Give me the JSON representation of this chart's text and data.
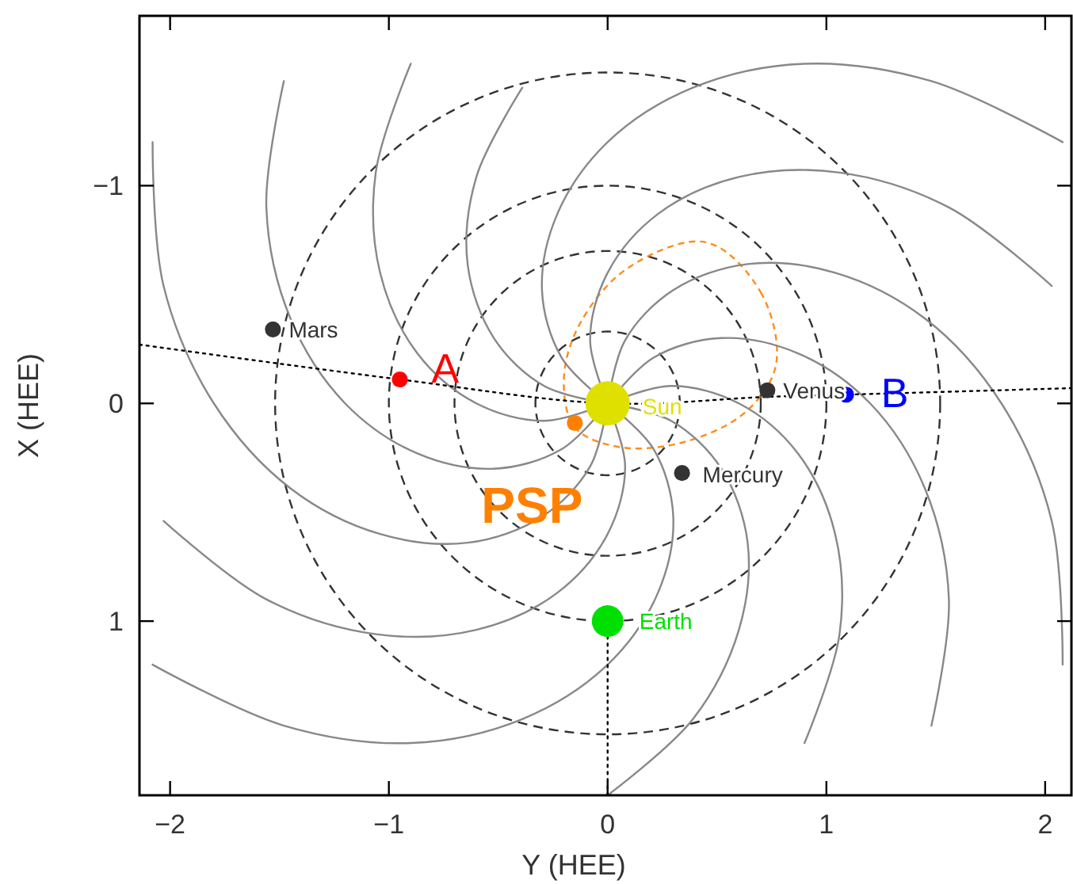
{
  "chart_data": {
    "type": "line",
    "xlabel": "Y (HEE)",
    "ylabel": "X (HEE)",
    "xlim": [
      -2.14,
      2.12
    ],
    "ylim": [
      1.8,
      -1.78
    ],
    "xticks": [
      -2,
      -1,
      0,
      1,
      2
    ],
    "yticks": [
      -1,
      0,
      1
    ],
    "grid": false,
    "series": [
      {
        "type": "line",
        "color": "#888888",
        "line_style": "solid",
        "x": [
          0,
          0.29,
          0.52,
          0.64,
          0.6,
          0.39,
          0
        ],
        "values": [
          0,
          0.08,
          0.3,
          0.64,
          1.04,
          1.45,
          1.8
        ]
      },
      {
        "type": "line",
        "color": "#888888",
        "line_style": "solid",
        "x": [
          0,
          0.21,
          0.3,
          0.23,
          0,
          -0.39,
          -0.9,
          -1.48,
          -2.08
        ],
        "values": [
          0,
          0.21,
          0.52,
          0.87,
          1.2,
          1.45,
          1.56,
          1.48,
          1.2
        ]
      },
      {
        "type": "line",
        "color": "#888888",
        "line_style": "solid",
        "x": [
          0,
          0.08,
          0,
          -0.23,
          -0.6,
          -1.06,
          -1.56,
          -2.03
        ],
        "values": [
          0,
          0.29,
          0.6,
          0.87,
          1.04,
          1.06,
          0.9,
          0.54
        ]
      },
      {
        "type": "line",
        "color": "#888888",
        "line_style": "solid",
        "x": [
          0,
          -0.08,
          -0.3,
          -0.64,
          -1.04,
          -1.45,
          -1.8,
          -2.03,
          -2.08
        ],
        "values": [
          0,
          0.29,
          0.52,
          0.64,
          0.6,
          0.39,
          0,
          -0.54,
          -1.2
        ]
      },
      {
        "type": "line",
        "color": "#888888",
        "line_style": "solid",
        "x": [
          0,
          -0.21,
          -0.52,
          -0.87,
          -1.2,
          -1.45,
          -1.56,
          -1.48
        ],
        "values": [
          0,
          0.21,
          0.3,
          0.23,
          0,
          -0.39,
          -0.9,
          -1.48
        ]
      },
      {
        "type": "line",
        "color": "#888888",
        "line_style": "solid",
        "x": [
          0,
          -0.29,
          -0.6,
          -0.87,
          -1.04,
          -1.06,
          -0.9
        ],
        "values": [
          0,
          0.08,
          0,
          -0.23,
          -0.6,
          -1.06,
          -1.56
        ]
      },
      {
        "type": "line",
        "color": "#888888",
        "line_style": "solid",
        "x": [
          0,
          -0.29,
          -0.52,
          -0.64,
          -0.6,
          -0.39
        ],
        "values": [
          0,
          -0.08,
          -0.3,
          -0.64,
          -1.04,
          -1.45
        ]
      },
      {
        "type": "line",
        "color": "#888888",
        "line_style": "solid",
        "x": [
          0,
          -0.21,
          -0.3,
          -0.23,
          0,
          0.39,
          0.9,
          1.48,
          2.08
        ],
        "values": [
          0,
          -0.21,
          -0.52,
          -0.87,
          -1.2,
          -1.45,
          -1.56,
          -1.48,
          -1.2
        ]
      },
      {
        "type": "line",
        "color": "#888888",
        "line_style": "solid",
        "x": [
          0,
          -0.08,
          0,
          0.23,
          0.6,
          1.06,
          1.56,
          2.03
        ],
        "values": [
          0,
          -0.29,
          -0.6,
          -0.87,
          -1.04,
          -1.06,
          -0.9,
          -0.54
        ]
      },
      {
        "type": "line",
        "color": "#888888",
        "line_style": "solid",
        "x": [
          0,
          0.08,
          0.3,
          0.64,
          1.04,
          1.45,
          1.8,
          2.03,
          2.08
        ],
        "values": [
          0,
          -0.29,
          -0.52,
          -0.64,
          -0.6,
          -0.39,
          0,
          0.54,
          1.2
        ]
      },
      {
        "type": "line",
        "color": "#888888",
        "line_style": "solid",
        "x": [
          0,
          0.21,
          0.52,
          0.87,
          1.2,
          1.45,
          1.56,
          1.48
        ],
        "values": [
          0,
          -0.21,
          -0.3,
          -0.23,
          0,
          0.39,
          0.9,
          1.48
        ]
      },
      {
        "type": "line",
        "color": "#888888",
        "line_style": "solid",
        "x": [
          0,
          0.29,
          0.6,
          0.87,
          1.04,
          1.06,
          0.9
        ],
        "values": [
          0,
          -0.08,
          0,
          0.23,
          0.6,
          1.06,
          1.56
        ]
      },
      {
        "type": "line",
        "color": "#000000",
        "line_style": "dotted",
        "x": [
          -2.14,
          -0.95,
          0,
          0.73,
          1.09,
          2.12
        ],
        "values": [
          -0.27,
          -0.11,
          0,
          -0.03,
          -0.04,
          -0.07
        ]
      },
      {
        "type": "line",
        "color": "#000000",
        "line_style": "dotted",
        "x": [
          0,
          0
        ],
        "values": [
          1.07,
          1.8
        ]
      },
      {
        "type": "bubble",
        "x": [
          -1.53,
          -0.95,
          0,
          -0.15,
          0.34,
          0.73,
          1.09,
          0
        ],
        "values": [
          -0.34,
          -0.11,
          0,
          0.09,
          0.32,
          -0.06,
          -0.04,
          1
        ],
        "sizes": [
          0.13,
          0.13,
          1,
          0.13,
          0.13,
          0.13,
          0.13,
          0.51
        ],
        "colors": [
          "#333333",
          "#ff0000",
          "#e0e000",
          "#ff8000",
          "#333333",
          "#333333",
          "#0000ff",
          "#00e000"
        ]
      }
    ],
    "annotations": [
      {
        "text": "Mars",
        "x": -1.53,
        "y": -0.34
      },
      {
        "text": "A",
        "x": -0.95,
        "y": -0.11
      },
      {
        "text": "Sun",
        "x": 0,
        "y": 0
      },
      {
        "text": "PSP",
        "x": -0.15,
        "y": 0.09
      },
      {
        "text": "Mercury",
        "x": 0.34,
        "y": 0.32
      },
      {
        "text": "Venus",
        "x": 0.73,
        "y": -0.06
      },
      {
        "text": "B",
        "x": 1.09,
        "y": -0.04
      },
      {
        "text": "Earth",
        "x": 0,
        "y": 1
      }
    ]
  }
}
